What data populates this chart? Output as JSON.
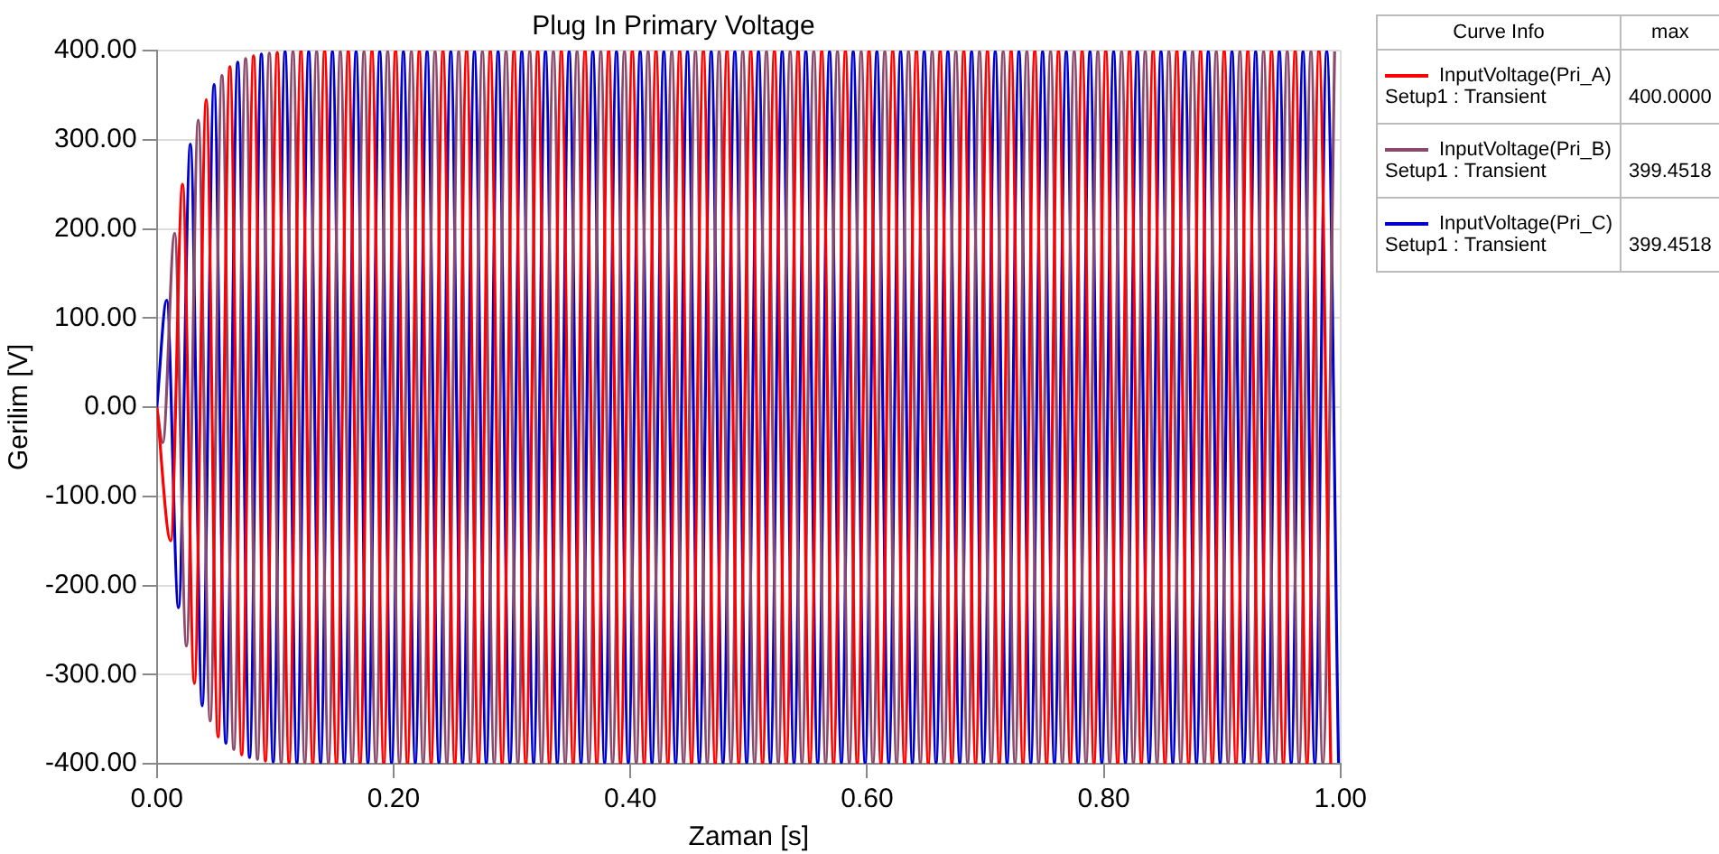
{
  "chart_data": {
    "type": "line",
    "title": "Plug In Primary Voltage",
    "xlabel": "Zaman [s]",
    "ylabel": "Gerilim [V]",
    "legend_title": "Curve Info",
    "legend": "right",
    "grid": true,
    "marker": "none",
    "line_style": "solid",
    "annotations": [
      "max",
      "Setup1 : Transient",
      "Setup1 : Transient",
      "Setup1 : Transient",
      "400.0000",
      "399.4518",
      "399.4518"
    ],
    "xlim": [
      0,
      1
    ],
    "ylim": [
      -400,
      400
    ],
    "xticks": [
      {
        "value": 0,
        "label": "0.00"
      },
      {
        "value": 0.2,
        "label": "0.20"
      },
      {
        "value": 0.4,
        "label": "0.40"
      },
      {
        "value": 0.6,
        "label": "0.60"
      },
      {
        "value": 0.8,
        "label": "0.80"
      },
      {
        "value": 1,
        "label": "1.00"
      }
    ],
    "yticks": [
      {
        "value": -400,
        "label": "-400.00"
      },
      {
        "value": -300,
        "label": "-300.00"
      },
      {
        "value": -200,
        "label": "-200.00"
      },
      {
        "value": -100,
        "label": "-100.00"
      },
      {
        "value": 0,
        "label": "0.00"
      },
      {
        "value": 100,
        "label": "100.00"
      },
      {
        "value": 200,
        "label": "200.00"
      },
      {
        "value": 300,
        "label": "300.00"
      },
      {
        "value": 400,
        "label": "400.00"
      }
    ],
    "series": [
      {
        "name": "InputVoltage(Pri_A)",
        "color": "#ff0000",
        "x": [
          0,
          0.0117,
          0.0217,
          0.0317,
          0.0417,
          0.0517,
          0.0617,
          0.0717,
          0.0817,
          0.0917,
          0.1017,
          0.1117,
          0.1217,
          0.1317,
          0.1417,
          0.1517,
          0.1617,
          0.1717,
          0.1817,
          0.1917,
          0.2017,
          0.2117,
          0.2217,
          0.2317,
          0.2417,
          0.2517,
          0.2617,
          0.2717,
          0.2817,
          0.2917,
          0.3017,
          0.3117,
          0.3217,
          0.3317,
          0.3417,
          0.3517,
          0.3617,
          0.3717,
          0.3817,
          0.3917,
          0.4017,
          0.4117,
          0.4217,
          0.4317,
          0.4417,
          0.4517,
          0.4617,
          0.4717,
          0.4817,
          0.4917,
          0.5017,
          0.5117,
          0.5217,
          0.5317,
          0.5417,
          0.5517,
          0.5617,
          0.5717,
          0.5817,
          0.5917,
          0.6017,
          0.6117,
          0.6217,
          0.6317,
          0.6417,
          0.6517,
          0.6617,
          0.6717,
          0.6817,
          0.6917,
          0.7017,
          0.7117,
          0.7217,
          0.7317,
          0.7417,
          0.7517,
          0.7617,
          0.7717,
          0.7817,
          0.7917,
          0.8017,
          0.8117,
          0.8217,
          0.8317,
          0.8417,
          0.8517,
          0.8617,
          0.8717,
          0.8817,
          0.8917,
          0.9017,
          0.9117,
          0.9217,
          0.9317,
          0.9417,
          0.9517,
          0.9617,
          0.9717,
          0.9817,
          0.9917
        ],
        "values": [
          0,
          -150,
          250,
          -310,
          345,
          -370,
          382,
          -390,
          394,
          -397,
          398,
          -399,
          400,
          -400,
          400,
          -400,
          400,
          -400,
          400,
          -400,
          400,
          -400,
          400,
          -400,
          400,
          -400,
          400,
          -400,
          400,
          -400,
          400,
          -400,
          400,
          -400,
          400,
          -400,
          400,
          -400,
          400,
          -400,
          400,
          -400,
          400,
          -400,
          400,
          -400,
          400,
          -400,
          400,
          -400,
          400,
          -400,
          400,
          -400,
          400,
          -400,
          400,
          -400,
          400,
          -400,
          400,
          -400,
          400,
          -400,
          400,
          -400,
          400,
          -400,
          400,
          -400,
          400,
          -400,
          400,
          -400,
          400,
          -400,
          400,
          -400,
          400,
          -400,
          400,
          -400,
          400,
          -400,
          400,
          -400,
          400,
          -400,
          400,
          -400,
          400,
          -400,
          400,
          -400,
          400,
          -400,
          400,
          -400,
          400,
          -400
        ]
      },
      {
        "name": "InputVoltage(Pri_B)",
        "color": "#8b4a6b",
        "x": [
          0,
          0.005,
          0.015,
          0.025,
          0.035,
          0.045,
          0.055,
          0.065,
          0.075,
          0.085,
          0.095,
          0.105,
          0.115,
          0.125,
          0.135,
          0.145,
          0.155,
          0.165,
          0.175,
          0.185,
          0.195,
          0.205,
          0.215,
          0.225,
          0.235,
          0.245,
          0.255,
          0.265,
          0.275,
          0.285,
          0.295,
          0.305,
          0.315,
          0.325,
          0.335,
          0.345,
          0.355,
          0.365,
          0.375,
          0.385,
          0.395,
          0.405,
          0.415,
          0.425,
          0.435,
          0.445,
          0.455,
          0.465,
          0.475,
          0.485,
          0.495,
          0.505,
          0.515,
          0.525,
          0.535,
          0.545,
          0.555,
          0.565,
          0.575,
          0.585,
          0.595,
          0.605,
          0.615,
          0.625,
          0.635,
          0.645,
          0.655,
          0.665,
          0.675,
          0.685,
          0.695,
          0.705,
          0.715,
          0.725,
          0.735,
          0.745,
          0.755,
          0.765,
          0.775,
          0.785,
          0.795,
          0.805,
          0.815,
          0.825,
          0.835,
          0.845,
          0.855,
          0.865,
          0.875,
          0.885,
          0.895,
          0.905,
          0.915,
          0.925,
          0.935,
          0.945,
          0.955,
          0.965,
          0.975,
          0.985,
          0.995
        ],
        "values": [
          0,
          -40,
          195,
          -268,
          322,
          -352,
          372,
          -384,
          391,
          -395,
          397,
          -399,
          399,
          -399,
          399,
          -399,
          399,
          -399,
          399,
          -399,
          399,
          -399,
          399,
          -399,
          399,
          -399,
          399,
          -399,
          399,
          -399,
          399,
          -399,
          399,
          -399,
          399,
          -399,
          399,
          -399,
          399,
          -399,
          399,
          -399,
          399,
          -399,
          399,
          -399,
          399,
          -399,
          399,
          -399,
          399,
          -399,
          399,
          -399,
          399,
          -399,
          399,
          -399,
          399,
          -399,
          399,
          -399,
          399,
          -399,
          399,
          -399,
          399,
          -399,
          399,
          -399,
          399,
          -399,
          399,
          -399,
          399,
          -399,
          399,
          -399,
          399,
          -399,
          399,
          -399,
          399,
          -399,
          399,
          -399,
          399,
          -399,
          399,
          -399,
          399,
          -399,
          399,
          -399,
          399,
          -399,
          399,
          -399,
          399,
          -399,
          399
        ]
      },
      {
        "name": "InputVoltage(Pri_C)",
        "color": "#0000cc",
        "x": [
          0,
          0.0083,
          0.0183,
          0.0283,
          0.0383,
          0.0483,
          0.0583,
          0.0683,
          0.0783,
          0.0883,
          0.0983,
          0.1083,
          0.1183,
          0.1283,
          0.1383,
          0.1483,
          0.1583,
          0.1683,
          0.1783,
          0.1883,
          0.1983,
          0.2083,
          0.2183,
          0.2283,
          0.2383,
          0.2483,
          0.2583,
          0.2683,
          0.2783,
          0.2883,
          0.2983,
          0.3083,
          0.3183,
          0.3283,
          0.3383,
          0.3483,
          0.3583,
          0.3683,
          0.3783,
          0.3883,
          0.3983,
          0.4083,
          0.4183,
          0.4283,
          0.4383,
          0.4483,
          0.4583,
          0.4683,
          0.4783,
          0.4883,
          0.4983,
          0.5083,
          0.5183,
          0.5283,
          0.5383,
          0.5483,
          0.5583,
          0.5683,
          0.5783,
          0.5883,
          0.5983,
          0.6083,
          0.6183,
          0.6283,
          0.6383,
          0.6483,
          0.6583,
          0.6683,
          0.6783,
          0.6883,
          0.6983,
          0.7083,
          0.7183,
          0.7283,
          0.7383,
          0.7483,
          0.7583,
          0.7683,
          0.7783,
          0.7883,
          0.7983,
          0.8083,
          0.8183,
          0.8283,
          0.8383,
          0.8483,
          0.8583,
          0.8683,
          0.8783,
          0.8883,
          0.8983,
          0.9083,
          0.9183,
          0.9283,
          0.9383,
          0.9483,
          0.9583,
          0.9683,
          0.9783,
          0.9883,
          0.9983
        ],
        "values": [
          0,
          120,
          -225,
          295,
          -335,
          362,
          -377,
          387,
          -393,
          396,
          -398,
          399,
          -399,
          399,
          -399,
          399,
          -399,
          399,
          -399,
          399,
          -399,
          399,
          -399,
          399,
          -399,
          399,
          -399,
          399,
          -399,
          399,
          -399,
          399,
          -399,
          399,
          -399,
          399,
          -399,
          399,
          -399,
          399,
          -399,
          399,
          -399,
          399,
          -399,
          399,
          -399,
          399,
          -399,
          399,
          -399,
          399,
          -399,
          399,
          -399,
          399,
          -399,
          399,
          -399,
          399,
          -399,
          399,
          -399,
          399,
          -399,
          399,
          -399,
          399,
          -399,
          399,
          -399,
          399,
          -399,
          399,
          -399,
          399,
          -399,
          399,
          -399,
          399,
          -399,
          399,
          -399,
          399,
          -399,
          399,
          -399,
          399,
          -399,
          399,
          -399,
          399,
          -399,
          399,
          -399,
          399,
          -399,
          399,
          -399,
          399,
          -399
        ]
      }
    ]
  }
}
